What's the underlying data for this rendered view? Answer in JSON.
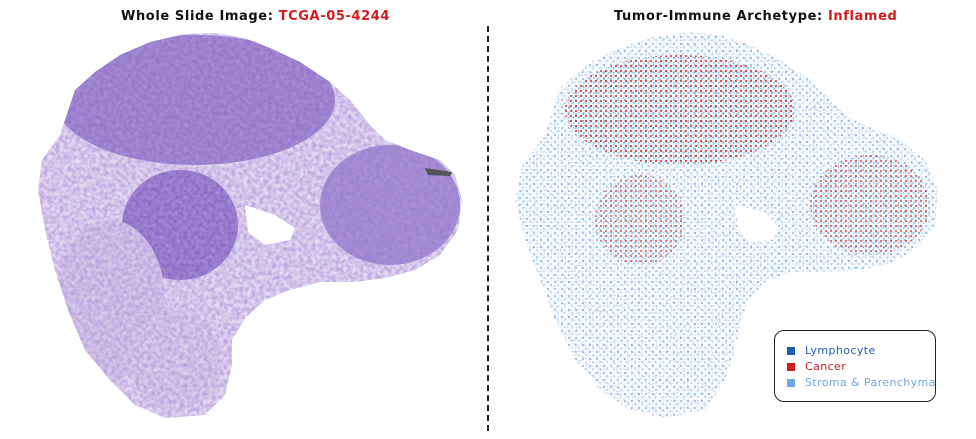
{
  "left_panel": {
    "title_prefix": "Whole Slide Image: ",
    "title_highlight": "TCGA-05-4244"
  },
  "right_panel": {
    "title_prefix": "Tumor-Immune Archetype: ",
    "title_highlight": "Inflamed"
  },
  "legend": {
    "items": [
      {
        "label": "Lymphocyte",
        "color": "#1f5fb0"
      },
      {
        "label": "Cancer",
        "color": "#d01c1c"
      },
      {
        "label": "Stroma & Parenchyma",
        "color": "#6fa8dc"
      }
    ]
  },
  "colors": {
    "highlight": "#d01c1c",
    "tissue_dense": "#8a6bc4",
    "tissue_light": "#c9b8e6"
  }
}
